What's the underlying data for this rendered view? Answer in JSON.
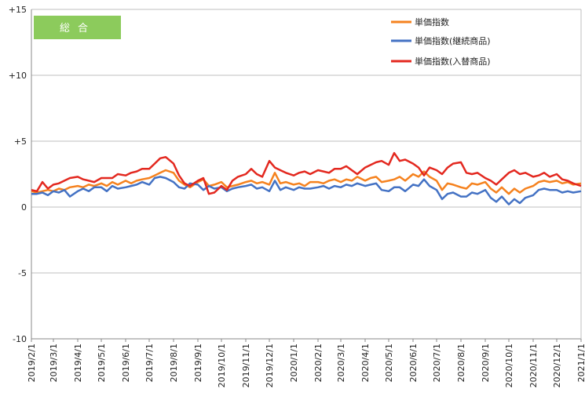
{
  "chart_data": {
    "type": "line",
    "badge": "総合",
    "ylim": [
      -10,
      15
    ],
    "y_ticks": [
      {
        "value": 15,
        "label": "+15"
      },
      {
        "value": 10,
        "label": "+10"
      },
      {
        "value": 5,
        "label": "+5"
      },
      {
        "value": 0,
        "label": "0"
      },
      {
        "value": -5,
        "label": "-5"
      },
      {
        "value": -10,
        "label": "-10"
      }
    ],
    "x_tick_labels": [
      "2019/2/1",
      "2019/3/1",
      "2019/4/1",
      "2019/5/1",
      "2019/6/1",
      "2019/7/1",
      "2019/8/1",
      "2019/9/1",
      "2019/10/1",
      "2019/11/1",
      "2019/12/1",
      "2020/1/1",
      "2020/2/1",
      "2020/3/1",
      "2020/4/1",
      "2020/5/1",
      "2020/6/1",
      "2020/7/1",
      "2020/8/1",
      "2020/9/1",
      "2020/10/1",
      "2020/11/1",
      "2020/12/1",
      "2021/1/1"
    ],
    "grid": "horizontal-major",
    "legend_position": "top-right",
    "x": [
      "2019/2/1",
      "2019/2/8",
      "2019/2/15",
      "2019/2/22",
      "2019/3/1",
      "2019/3/8",
      "2019/3/15",
      "2019/3/22",
      "2019/4/1",
      "2019/4/8",
      "2019/4/15",
      "2019/4/22",
      "2019/5/1",
      "2019/5/8",
      "2019/5/15",
      "2019/5/22",
      "2019/6/1",
      "2019/6/8",
      "2019/6/15",
      "2019/6/22",
      "2019/7/1",
      "2019/7/8",
      "2019/7/15",
      "2019/7/22",
      "2019/8/1",
      "2019/8/8",
      "2019/8/15",
      "2019/8/22",
      "2019/9/1",
      "2019/9/8",
      "2019/9/15",
      "2019/9/22",
      "2019/10/1",
      "2019/10/8",
      "2019/10/15",
      "2019/10/22",
      "2019/11/1",
      "2019/11/8",
      "2019/11/15",
      "2019/11/22",
      "2019/12/1",
      "2019/12/8",
      "2019/12/15",
      "2019/12/22",
      "2020/1/1",
      "2020/1/8",
      "2020/1/15",
      "2020/1/22",
      "2020/2/1",
      "2020/2/8",
      "2020/2/15",
      "2020/2/22",
      "2020/3/1",
      "2020/3/8",
      "2020/3/15",
      "2020/3/22",
      "2020/4/1",
      "2020/4/8",
      "2020/4/15",
      "2020/4/22",
      "2020/5/1",
      "2020/5/8",
      "2020/5/15",
      "2020/5/22",
      "2020/6/1",
      "2020/6/8",
      "2020/6/15",
      "2020/6/22",
      "2020/7/1",
      "2020/7/8",
      "2020/7/15",
      "2020/7/22",
      "2020/8/1",
      "2020/8/8",
      "2020/8/15",
      "2020/8/22",
      "2020/9/1",
      "2020/9/8",
      "2020/9/15",
      "2020/9/22",
      "2020/10/1",
      "2020/10/8",
      "2020/10/15",
      "2020/10/22",
      "2020/11/1",
      "2020/11/8",
      "2020/11/15",
      "2020/11/22",
      "2020/12/1",
      "2020/12/8",
      "2020/12/15",
      "2020/12/22",
      "2021/1/1"
    ],
    "series": [
      {
        "name": "単価指数",
        "color": "#F5821F",
        "values": [
          1.2,
          1.1,
          1.2,
          1.3,
          1.2,
          1.4,
          1.3,
          1.5,
          1.6,
          1.5,
          1.7,
          1.6,
          1.8,
          1.6,
          1.9,
          1.7,
          2.0,
          1.8,
          2.0,
          2.1,
          2.2,
          2.4,
          2.6,
          2.8,
          2.6,
          2.0,
          1.7,
          1.5,
          1.9,
          2.1,
          1.6,
          1.7,
          1.9,
          1.5,
          1.6,
          1.7,
          1.9,
          2.0,
          1.8,
          1.9,
          1.7,
          2.6,
          1.8,
          1.9,
          1.7,
          1.8,
          1.6,
          1.9,
          1.9,
          1.8,
          2.0,
          2.1,
          1.9,
          2.1,
          2.0,
          2.3,
          2.0,
          2.2,
          2.3,
          1.9,
          2.0,
          2.1,
          2.3,
          2.0,
          2.5,
          2.3,
          2.7,
          2.3,
          2.0,
          1.3,
          1.8,
          1.7,
          1.5,
          1.4,
          1.8,
          1.7,
          1.9,
          1.4,
          1.1,
          1.5,
          1.0,
          1.4,
          1.1,
          1.4,
          1.6,
          1.9,
          2.0,
          1.9,
          2.0,
          1.8,
          1.9,
          1.7,
          1.8
        ]
      },
      {
        "name": "単価指数(継続商品)",
        "color": "#4472C4",
        "values": [
          1.0,
          1.0,
          1.1,
          0.9,
          1.2,
          1.1,
          1.3,
          0.8,
          1.2,
          1.4,
          1.2,
          1.5,
          1.5,
          1.2,
          1.6,
          1.4,
          1.5,
          1.6,
          1.7,
          1.9,
          1.7,
          2.2,
          2.3,
          2.2,
          1.9,
          1.5,
          1.4,
          1.8,
          1.7,
          1.3,
          1.6,
          1.4,
          1.5,
          1.2,
          1.4,
          1.5,
          1.6,
          1.7,
          1.4,
          1.5,
          1.2,
          2.0,
          1.3,
          1.5,
          1.3,
          1.5,
          1.4,
          1.4,
          1.5,
          1.6,
          1.4,
          1.6,
          1.5,
          1.7,
          1.6,
          1.8,
          1.6,
          1.7,
          1.8,
          1.3,
          1.2,
          1.5,
          1.5,
          1.2,
          1.7,
          1.6,
          2.1,
          1.6,
          1.3,
          0.6,
          1.0,
          1.1,
          0.8,
          0.8,
          1.1,
          1.0,
          1.3,
          0.7,
          0.4,
          0.8,
          0.2,
          0.6,
          0.3,
          0.7,
          0.9,
          1.3,
          1.4,
          1.3,
          1.3,
          1.1,
          1.2,
          1.1,
          1.2
        ]
      },
      {
        "name": "単価指数(入替商品)",
        "color": "#E3281F",
        "values": [
          1.3,
          1.2,
          1.9,
          1.4,
          1.7,
          1.8,
          2.0,
          2.2,
          2.3,
          2.1,
          2.0,
          1.9,
          2.2,
          2.2,
          2.2,
          2.5,
          2.4,
          2.6,
          2.7,
          2.9,
          2.9,
          3.3,
          3.7,
          3.8,
          3.3,
          2.4,
          1.8,
          1.6,
          2.0,
          2.2,
          1.0,
          1.1,
          1.6,
          1.3,
          2.0,
          2.3,
          2.5,
          2.9,
          2.5,
          2.3,
          3.5,
          3.0,
          2.8,
          2.6,
          2.4,
          2.6,
          2.7,
          2.5,
          2.8,
          2.7,
          2.6,
          2.9,
          2.9,
          3.1,
          2.8,
          2.5,
          3.0,
          3.2,
          3.4,
          3.5,
          3.2,
          4.1,
          3.5,
          3.6,
          3.3,
          3.0,
          2.4,
          3.0,
          2.8,
          2.5,
          3.0,
          3.3,
          3.4,
          2.6,
          2.5,
          2.6,
          2.2,
          2.0,
          1.7,
          2.1,
          2.6,
          2.8,
          2.5,
          2.6,
          2.3,
          2.4,
          2.6,
          2.3,
          2.5,
          2.1,
          2.0,
          1.8,
          1.6
        ]
      }
    ]
  }
}
